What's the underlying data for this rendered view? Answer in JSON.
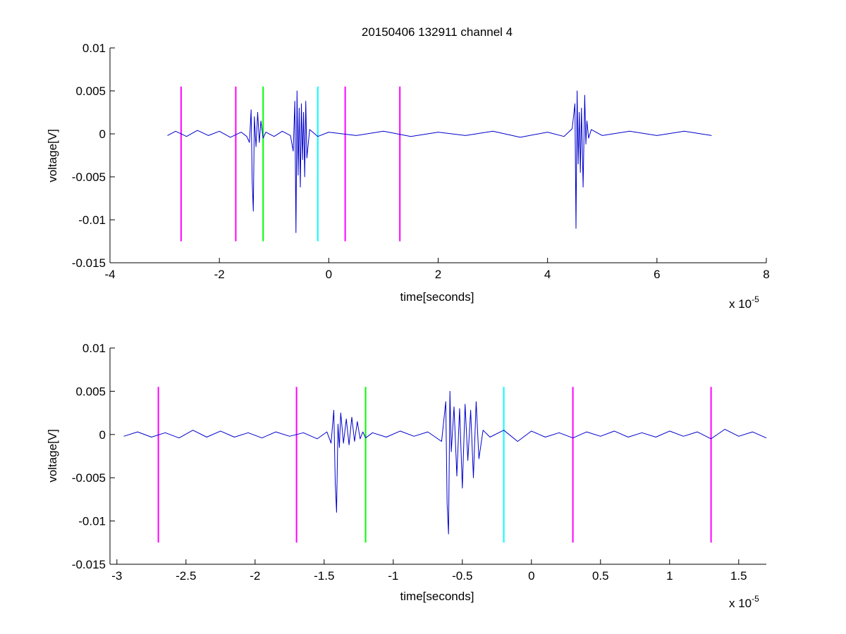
{
  "figure": {
    "title": "20150406 132911 channel 4"
  },
  "colors": {
    "trace": "#0000cc",
    "magenta": "#ff00ff",
    "green": "#00ff00",
    "cyan": "#00ffff",
    "axes": "#000000",
    "background": "#ffffff"
  },
  "chart_data": [
    {
      "type": "line",
      "panel": "top",
      "title": "20150406 132911 channel 4",
      "xlabel": "time[seconds]",
      "ylabel": "voltage[V]",
      "x_multiplier_label": "x 10",
      "x_multiplier_exponent": "-5",
      "xlim": [
        -4,
        8
      ],
      "ylim": [
        -0.015,
        0.01
      ],
      "x_units_scale": 1e-05,
      "xticks": [
        -4,
        -2,
        0,
        2,
        4,
        6,
        8
      ],
      "xtick_labels": [
        "-4",
        "-2",
        "0",
        "2",
        "4",
        "6",
        "8"
      ],
      "yticks": [
        0.01,
        0.005,
        0,
        -0.005,
        -0.01,
        -0.015
      ],
      "ytick_labels": [
        "0.01",
        "0.005",
        "0",
        "-0.005",
        "-0.01",
        "-0.015"
      ],
      "grid": false,
      "series": [
        {
          "trace_x": [
            -2.95,
            -2.8,
            -2.6,
            -2.4,
            -2.2,
            -2.0,
            -1.8,
            -1.6,
            -1.5,
            -1.45,
            -1.42,
            -1.4,
            -1.38,
            -1.36,
            -1.33,
            -1.3,
            -1.27,
            -1.24,
            -1.2,
            -1.15,
            -1.0,
            -0.85,
            -0.7,
            -0.65,
            -0.62,
            -0.6,
            -0.58,
            -0.56,
            -0.54,
            -0.52,
            -0.5,
            -0.48,
            -0.46,
            -0.44,
            -0.42,
            -0.4,
            -0.35,
            -0.2,
            0,
            0.5,
            1,
            1.5,
            2,
            2.5,
            3,
            3.5,
            4,
            4.3,
            4.45,
            4.5,
            4.52,
            4.54,
            4.56,
            4.58,
            4.6,
            4.62,
            4.65,
            4.68,
            4.7,
            4.72,
            4.75,
            4.8,
            5.0,
            5.5,
            6.0,
            6.5,
            7.0
          ],
          "trace_y": [
            -0.0002,
            0.0003,
            -0.0003,
            0.0004,
            -0.0002,
            0.0003,
            -0.0004,
            0.0002,
            -0.0003,
            -0.001,
            0.0028,
            -0.0055,
            -0.009,
            0.002,
            -0.0015,
            0.0025,
            -0.001,
            0.0015,
            -0.0005,
            0.0002,
            -0.0003,
            0.0003,
            -0.0002,
            -0.002,
            0.0038,
            -0.0115,
            0.005,
            -0.0048,
            0.003,
            -0.0062,
            0.0035,
            -0.003,
            0.0025,
            -0.005,
            0.0038,
            -0.0028,
            0.0005,
            -0.0003,
            0.0002,
            -0.0002,
            0.0003,
            -0.0003,
            0.0002,
            -0.0002,
            0.0003,
            -0.0004,
            0.0002,
            -0.0003,
            0.0006,
            0.0035,
            -0.011,
            0.005,
            -0.0035,
            0.0025,
            -0.0045,
            0.003,
            -0.0062,
            0.0045,
            -0.0012,
            0.0015,
            -0.0005,
            0.0005,
            -0.0002,
            0.0003,
            -0.0002,
            0.0003,
            -0.0002
          ]
        }
      ],
      "vertical_markers": [
        {
          "x": -2.7,
          "color": "magenta",
          "y_range": [
            -0.0125,
            0.0055
          ]
        },
        {
          "x": -1.7,
          "color": "magenta",
          "y_range": [
            -0.0125,
            0.0055
          ]
        },
        {
          "x": -1.2,
          "color": "green",
          "y_range": [
            -0.0125,
            0.0055
          ]
        },
        {
          "x": -0.2,
          "color": "cyan",
          "y_range": [
            -0.0125,
            0.0055
          ]
        },
        {
          "x": 0.3,
          "color": "magenta",
          "y_range": [
            -0.0125,
            0.0055
          ]
        },
        {
          "x": 1.3,
          "color": "magenta",
          "y_range": [
            -0.0125,
            0.0055
          ]
        }
      ]
    },
    {
      "type": "line",
      "panel": "bottom",
      "title": "",
      "xlabel": "time[seconds]",
      "ylabel": "voltage[V]",
      "x_multiplier_label": "x 10",
      "x_multiplier_exponent": "-5",
      "xlim": [
        -3.05,
        1.7
      ],
      "ylim": [
        -0.015,
        0.01
      ],
      "x_units_scale": 1e-05,
      "xticks": [
        -3,
        -2.5,
        -2,
        -1.5,
        -1,
        -0.5,
        0,
        0.5,
        1,
        1.5
      ],
      "xtick_labels": [
        "-3",
        "-2.5",
        "-2",
        "-1.5",
        "-1",
        "-0.5",
        "0",
        "0.5",
        "1",
        "1.5"
      ],
      "yticks": [
        0.01,
        0.005,
        0,
        -0.005,
        -0.01,
        -0.015
      ],
      "ytick_labels": [
        "0.01",
        "0.005",
        "0",
        "-0.005",
        "-0.01",
        "-0.015"
      ],
      "grid": false,
      "series": [
        {
          "trace_x": [
            -2.95,
            -2.85,
            -2.75,
            -2.65,
            -2.55,
            -2.45,
            -2.35,
            -2.25,
            -2.15,
            -2.05,
            -1.95,
            -1.85,
            -1.75,
            -1.65,
            -1.55,
            -1.48,
            -1.45,
            -1.43,
            -1.42,
            -1.41,
            -1.4,
            -1.39,
            -1.38,
            -1.36,
            -1.34,
            -1.32,
            -1.3,
            -1.28,
            -1.26,
            -1.24,
            -1.22,
            -1.2,
            -1.15,
            -1.05,
            -0.95,
            -0.85,
            -0.75,
            -0.65,
            -0.62,
            -0.61,
            -0.6,
            -0.59,
            -0.58,
            -0.56,
            -0.54,
            -0.52,
            -0.5,
            -0.48,
            -0.46,
            -0.44,
            -0.42,
            -0.4,
            -0.38,
            -0.35,
            -0.3,
            -0.2,
            -0.1,
            0,
            0.1,
            0.2,
            0.3,
            0.4,
            0.5,
            0.6,
            0.7,
            0.8,
            0.9,
            1.0,
            1.1,
            1.2,
            1.3,
            1.4,
            1.5,
            1.6,
            1.7
          ],
          "trace_y": [
            -0.0002,
            0.0003,
            -0.0003,
            0.0002,
            -0.0004,
            0.0005,
            -0.0003,
            0.0004,
            -0.0003,
            0.0002,
            -0.0004,
            0.0003,
            -0.0002,
            0.0002,
            -0.0005,
            0.0003,
            -0.001,
            0.0028,
            -0.0055,
            -0.009,
            0.0012,
            -0.0015,
            0.0025,
            -0.001,
            0.0018,
            -0.0012,
            0.002,
            -0.0008,
            0.0015,
            -0.0005,
            0.0003,
            -0.0004,
            0.0002,
            -0.0003,
            0.0004,
            -0.0002,
            0.0003,
            -0.0008,
            0.0038,
            -0.008,
            -0.0115,
            0.005,
            -0.002,
            0.0032,
            -0.0048,
            0.003,
            -0.0062,
            0.0035,
            -0.003,
            0.0028,
            -0.005,
            0.0038,
            -0.0028,
            0.0005,
            -0.0003,
            0.0005,
            -0.0008,
            0.0004,
            -0.0003,
            0.0002,
            -0.0004,
            0.0003,
            -0.0002,
            0.0004,
            -0.0003,
            0.0002,
            -0.0003,
            0.0004,
            -0.0002,
            0.0003,
            -0.0005,
            0.0006,
            -0.0002,
            0.0003,
            -0.0004
          ]
        }
      ],
      "vertical_markers": [
        {
          "x": -2.7,
          "color": "magenta",
          "y_range": [
            -0.0125,
            0.0055
          ]
        },
        {
          "x": -1.7,
          "color": "magenta",
          "y_range": [
            -0.0125,
            0.0055
          ]
        },
        {
          "x": -1.2,
          "color": "green",
          "y_range": [
            -0.0125,
            0.0055
          ]
        },
        {
          "x": -0.2,
          "color": "cyan",
          "y_range": [
            -0.0125,
            0.0055
          ]
        },
        {
          "x": 0.3,
          "color": "magenta",
          "y_range": [
            -0.0125,
            0.0055
          ]
        },
        {
          "x": 1.3,
          "color": "magenta",
          "y_range": [
            -0.0125,
            0.0055
          ]
        }
      ]
    }
  ]
}
